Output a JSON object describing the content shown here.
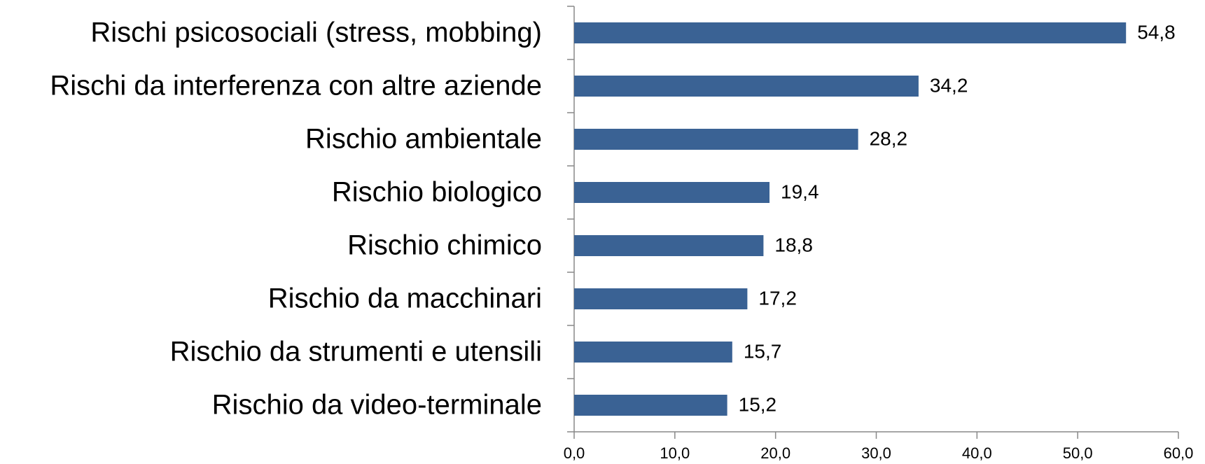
{
  "chart_data": {
    "type": "bar",
    "orientation": "horizontal",
    "categories": [
      "Rischi psicosociali (stress, mobbing)",
      "Rischi da interferenza con altre aziende",
      "Rischio ambientale",
      "Rischio biologico",
      "Rischio chimico",
      "Rischio da macchinari",
      "Rischio da strumenti e utensili",
      "Rischio da video-terminale"
    ],
    "values": [
      54.8,
      34.2,
      28.2,
      19.4,
      18.8,
      17.2,
      15.7,
      15.2
    ],
    "value_labels": [
      "54,8",
      "34,2",
      "28,2",
      "19,4",
      "18,8",
      "17,2",
      "15,7",
      "15,2"
    ],
    "color": "#3a6294",
    "xlim": [
      0,
      60
    ],
    "xticks": [
      {
        "value": 0,
        "label": "0,0"
      },
      {
        "value": 10,
        "label": "10,0"
      },
      {
        "value": 20,
        "label": "20,0"
      },
      {
        "value": 30,
        "label": "30,0"
      },
      {
        "value": 40,
        "label": "40,0"
      },
      {
        "value": 50,
        "label": "50,0"
      },
      {
        "value": 60,
        "label": "60,0"
      }
    ],
    "grid": false
  }
}
